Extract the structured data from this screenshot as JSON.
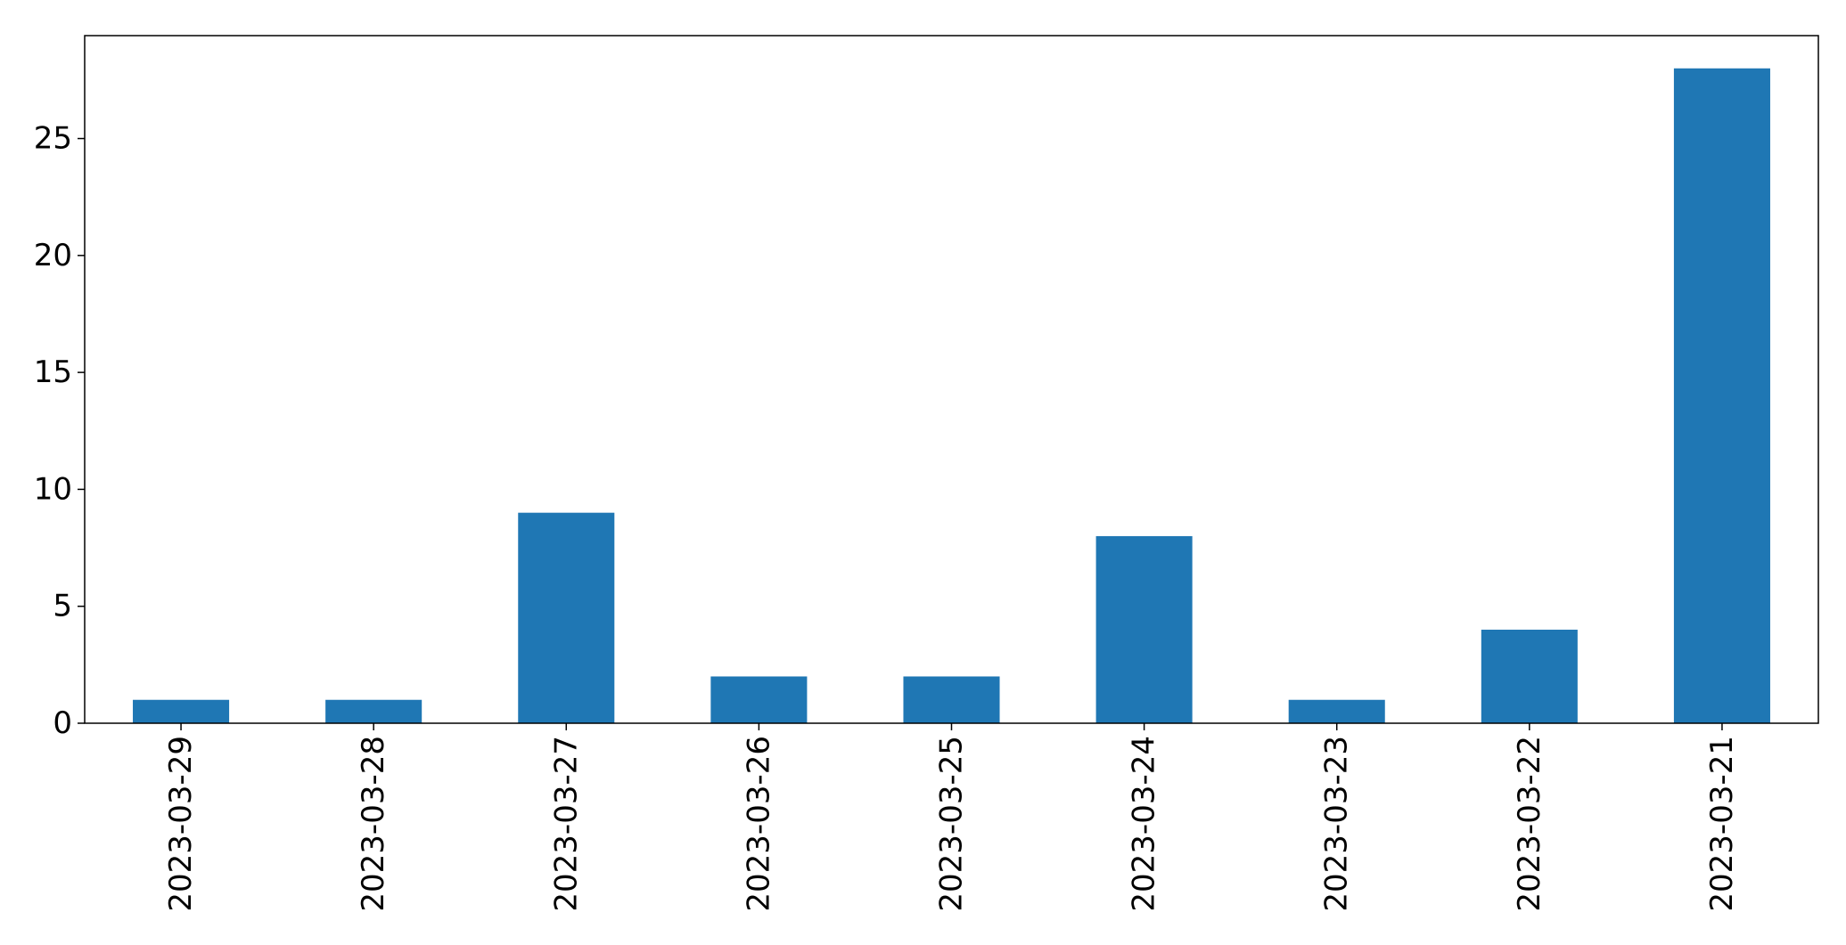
{
  "chart_data": {
    "type": "bar",
    "categories": [
      "2023-03-29",
      "2023-03-28",
      "2023-03-27",
      "2023-03-26",
      "2023-03-25",
      "2023-03-24",
      "2023-03-23",
      "2023-03-22",
      "2023-03-21"
    ],
    "values": [
      1,
      1,
      9,
      2,
      2,
      8,
      1,
      4,
      28
    ],
    "title": "",
    "xlabel": "",
    "ylabel": "",
    "ylim": [
      0,
      29.4
    ],
    "yticks": [
      0,
      5,
      10,
      15,
      20,
      25
    ],
    "grid": false,
    "legend": "none",
    "colors": {
      "bar": "#1f77b4",
      "axis": "#000000"
    }
  }
}
